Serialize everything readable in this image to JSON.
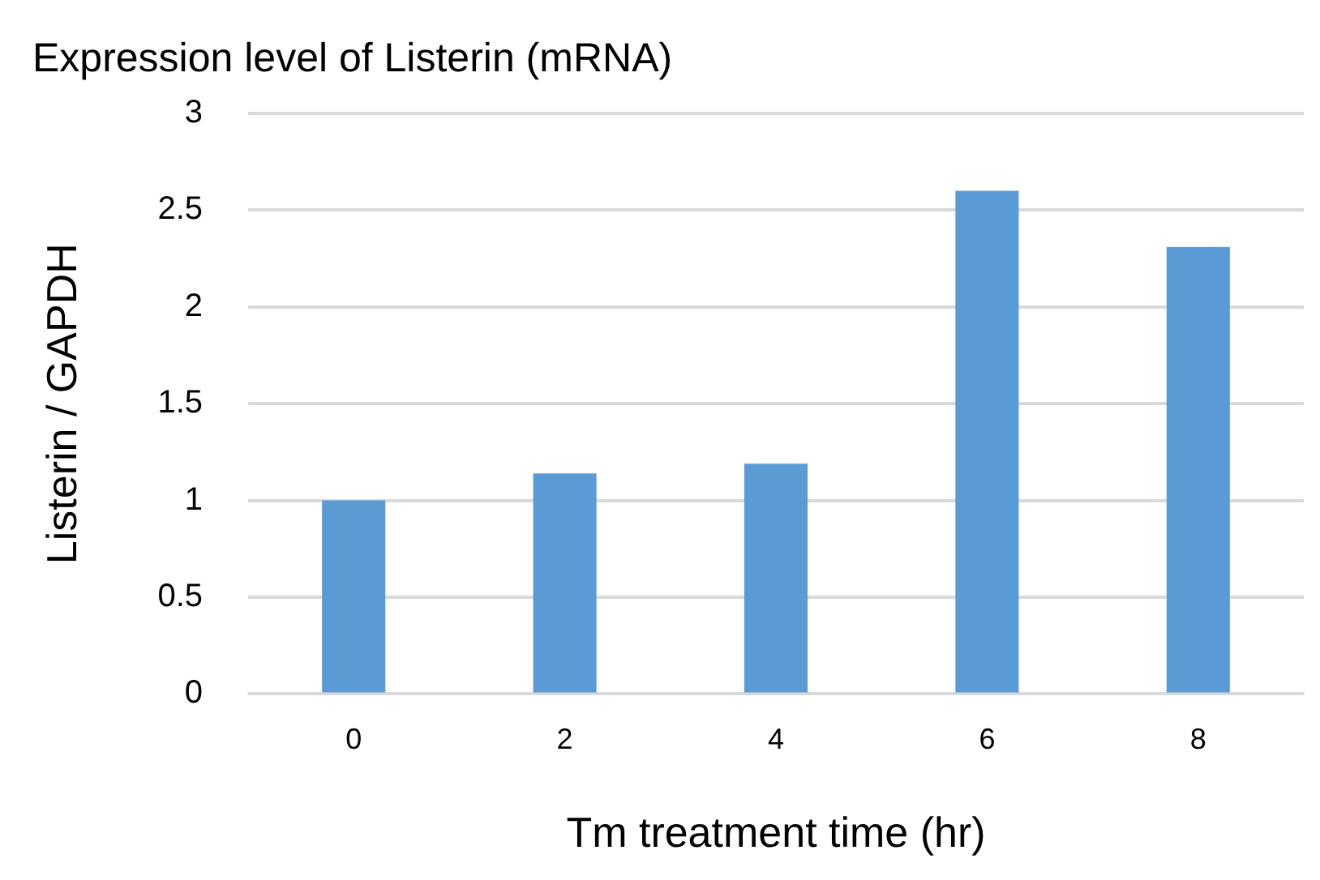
{
  "chart_data": {
    "type": "bar",
    "title": "Expression level of Listerin (mRNA)",
    "xlabel": "Tm treatment time (hr)",
    "ylabel": "Listerin / GAPDH",
    "categories": [
      "0",
      "2",
      "4",
      "6",
      "8"
    ],
    "values": [
      1.0,
      1.14,
      1.19,
      2.6,
      2.31
    ],
    "color": "#5b9bd5",
    "ylim": [
      0,
      3
    ],
    "yticks": [
      0,
      0.5,
      1,
      1.5,
      2,
      2.5,
      3
    ],
    "grid": "y",
    "legend": false
  }
}
